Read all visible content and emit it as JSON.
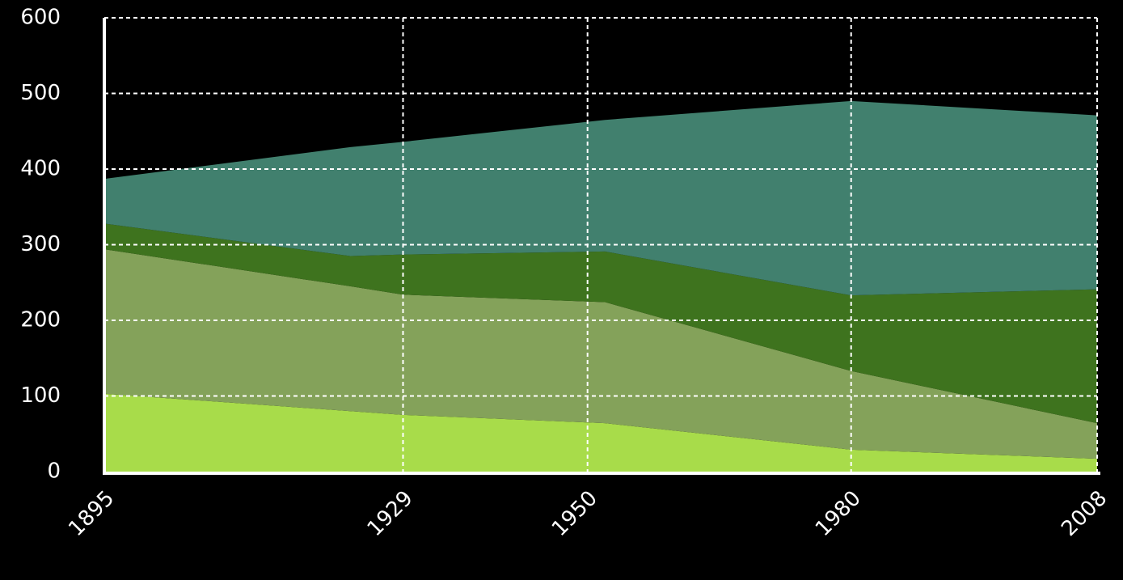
{
  "chart_data": {
    "type": "stacked_area",
    "x": [
      1895,
      1923,
      1929,
      1952,
      1980,
      2008
    ],
    "series": [
      {
        "color": "#a8dc4a",
        "values": [
          103,
          80,
          75,
          64,
          29,
          17
        ]
      },
      {
        "color": "#84a25a",
        "values": [
          191,
          165,
          159,
          160,
          104,
          47
        ]
      },
      {
        "color": "#3e731e",
        "values": [
          34,
          40,
          53,
          67,
          100,
          177
        ]
      },
      {
        "color": "#41806e",
        "values": [
          59,
          144,
          149,
          174,
          257,
          230
        ]
      }
    ],
    "xlim": [
      1895,
      2008
    ],
    "xticks": [
      1895,
      1929,
      1950,
      1980,
      2008
    ],
    "ylim": [
      0,
      600
    ],
    "yticks": [
      0,
      100,
      200,
      300,
      400,
      500,
      600
    ],
    "grid": true
  }
}
